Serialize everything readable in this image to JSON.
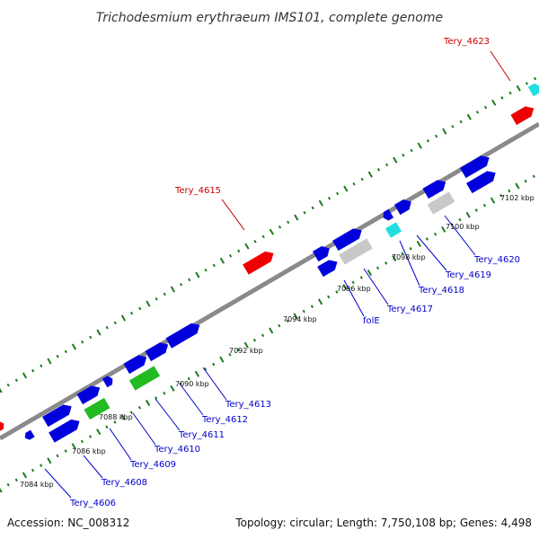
{
  "title": "Trichodesmium erythraeum IMS101, complete genome",
  "footer": {
    "accession": "Accession: NC_008312",
    "topology": "Topology: circular; Length: 7,750,108 bp; Genes: 4,498"
  },
  "colors": {
    "backbone": "#8a8a8a",
    "tick": "#1f7a1f",
    "forward_gene": "#0000dd",
    "reverse_gene": "#0000dd",
    "rna_gene": "#22bb22",
    "misc_gene": "#c8c8c8",
    "highlight_gene": "#22dddd",
    "named_red": "#ee0000",
    "label_blue": "#0000cc",
    "label_red": "#cc0000"
  },
  "kbp_labels": [
    "7084 kbp",
    "7086 kbp",
    "7088 kbp",
    "7090 kbp",
    "7092 kbp",
    "7094 kbp",
    "7096 kbp",
    "7098 kbp",
    "7100 kbp",
    "7102 kbp"
  ],
  "gene_labels_blue": [
    "Tery_4606",
    "Tery_4608",
    "Tery_4609",
    "Tery_4610",
    "Tery_4611",
    "Tery_4612",
    "Tery_4613",
    "folE",
    "Tery_4617",
    "Tery_4618",
    "Tery_4619",
    "Tery_4620"
  ],
  "gene_labels_red": [
    "Tery_4615",
    "Tery_4623"
  ]
}
